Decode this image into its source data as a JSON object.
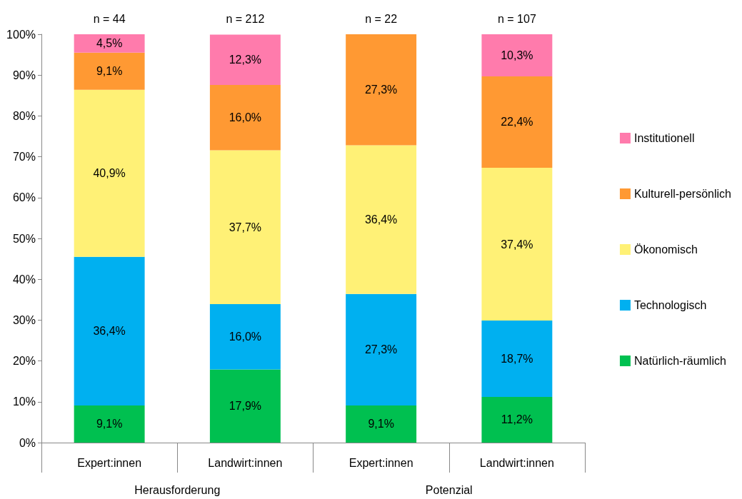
{
  "chart_data": {
    "type": "bar",
    "stacked": true,
    "categories": [
      "Expert:innen",
      "Landwirt:innen",
      "Expert:innen",
      "Landwirt:innen"
    ],
    "series": [
      {
        "name": "Natürlich-räumlich",
        "color": "#00c050",
        "values": [
          9.1,
          17.9,
          9.1,
          11.2
        ],
        "value_labels": [
          "9,1%",
          "17,9%",
          "9,1%",
          "11,2%"
        ]
      },
      {
        "name": "Technologisch",
        "color": "#00b0f0",
        "values": [
          36.4,
          16.0,
          27.3,
          18.7
        ],
        "value_labels": [
          "36,4%",
          "16,0%",
          "27,3%",
          "18,7%"
        ]
      },
      {
        "name": "Ökonomisch",
        "color": "#fff176",
        "values": [
          40.9,
          37.7,
          36.4,
          37.4
        ],
        "value_labels": [
          "40,9%",
          "37,7%",
          "36,4%",
          "37,4%"
        ]
      },
      {
        "name": "Kulturell-persönlich",
        "color": "#ff9933",
        "values": [
          9.1,
          16.0,
          27.3,
          22.4
        ],
        "value_labels": [
          "9,1%",
          "16,0%",
          "27,3%",
          "22,4%"
        ]
      },
      {
        "name": "Institutionell",
        "color": "#ff7bac",
        "values": [
          4.5,
          12.3,
          null,
          10.3
        ],
        "value_labels": [
          "4,5%",
          "12,3%",
          null,
          "10,3%"
        ]
      }
    ],
    "ylim": [
      0,
      100
    ],
    "yticks": [
      {
        "value": 0,
        "label": "0%"
      },
      {
        "value": 10,
        "label": "10%"
      },
      {
        "value": 20,
        "label": "20%"
      },
      {
        "value": 30,
        "label": "30%"
      },
      {
        "value": 40,
        "label": "40%"
      },
      {
        "value": 50,
        "label": "50%"
      },
      {
        "value": 60,
        "label": "60%"
      },
      {
        "value": 70,
        "label": "70%"
      },
      {
        "value": 80,
        "label": "80%"
      },
      {
        "value": 90,
        "label": "90%"
      },
      {
        "value": 100,
        "label": "100%"
      }
    ],
    "grid": false,
    "legend": "right",
    "annotations": [
      "n = 44",
      "n = 212",
      "n = 22",
      "n = 107",
      "Herausforderung",
      "Potenzial"
    ]
  }
}
